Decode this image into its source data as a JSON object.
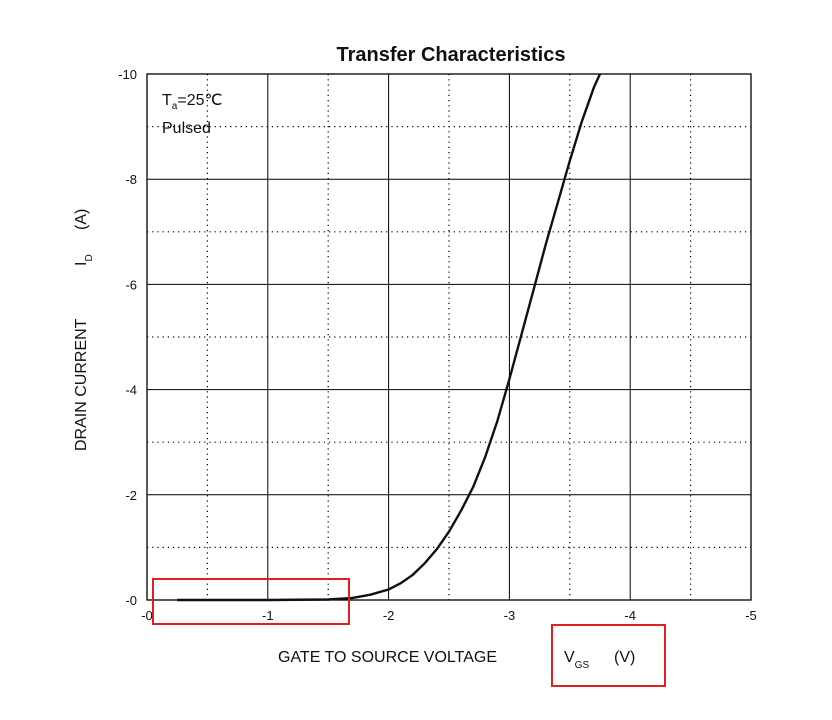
{
  "chart_data": {
    "type": "line",
    "title": "Transfer Characteristics",
    "xlabel": {
      "main": "GATE TO SOURCE VOLTAGE",
      "symbol": "V",
      "subscript": "GS",
      "unit": "(V)"
    },
    "ylabel": {
      "main": "DRAIN CURRENT",
      "symbol": "I",
      "subscript": "D",
      "unit": "(A)"
    },
    "xlim": [
      0,
      -5
    ],
    "ylim": [
      0,
      -10
    ],
    "x_ticks": [
      0,
      -1,
      -2,
      -3,
      -4,
      -5
    ],
    "x_tick_labels": [
      "-0",
      "-1",
      "-2",
      "-3",
      "-4",
      "-5"
    ],
    "y_ticks": [
      0,
      -2,
      -4,
      -6,
      -8,
      -10
    ],
    "y_tick_labels": [
      "-0",
      "-2",
      "-4",
      "-6",
      "-8",
      "-10"
    ],
    "grid": {
      "major": true,
      "minor_dotted": true
    },
    "annotations": {
      "temperature": {
        "symbol": "T",
        "subscript": "a",
        "value": "=25℃"
      },
      "mode": "Pulsed"
    },
    "series": [
      {
        "x": [
          -0.25,
          -1.0,
          -1.5,
          -1.7,
          -1.85,
          -2.0,
          -2.1,
          -2.2,
          -2.3,
          -2.4,
          -2.5,
          -2.6,
          -2.7,
          -2.8,
          -2.9,
          -3.0,
          -3.1,
          -3.2,
          -3.3,
          -3.4,
          -3.5,
          -3.6,
          -3.7,
          -3.75
        ],
        "y": [
          0,
          0,
          -0.01,
          -0.04,
          -0.1,
          -0.2,
          -0.32,
          -0.48,
          -0.7,
          -0.97,
          -1.3,
          -1.7,
          -2.15,
          -2.72,
          -3.4,
          -4.2,
          -5.05,
          -5.9,
          -6.75,
          -7.55,
          -8.35,
          -9.1,
          -9.75,
          -10.0
        ]
      }
    ]
  },
  "highlights": [
    {
      "label": "x-axis-start-region"
    },
    {
      "label": "x-axis-unit-region"
    }
  ],
  "colors": {
    "curve": "#111111",
    "grid": "#000000",
    "highlight": "#e0201c"
  }
}
